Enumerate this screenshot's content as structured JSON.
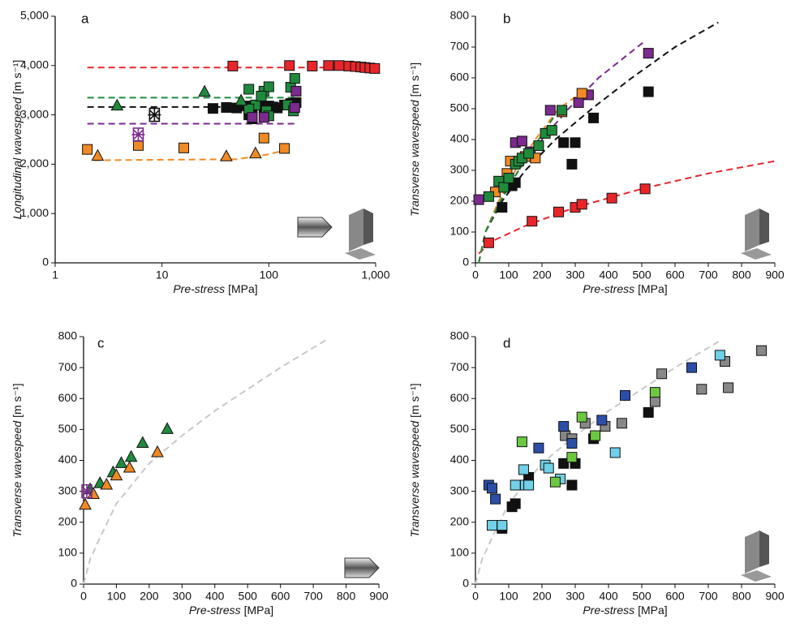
{
  "chart_data": [
    {
      "type": "scatter",
      "panel": "a",
      "xscale": "log",
      "xlabel": "Pre-stress",
      "xlabel_unit": "[MPa]",
      "ylabel": "Longitudinal wavespeed",
      "ylabel_unit": "[m s⁻¹]",
      "xlim": [
        1,
        1000
      ],
      "ylim": [
        0,
        5000
      ],
      "xticks": [
        1,
        10,
        100,
        {
          "value": 1000,
          "label": "1,000"
        }
      ],
      "yticks": [
        0,
        {
          "value": 1000,
          "label": "1,000"
        },
        {
          "value": 2000,
          "label": "2,000"
        },
        {
          "value": 3000,
          "label": "3,000"
        },
        {
          "value": 4000,
          "label": "4,000"
        },
        {
          "value": 5000,
          "label": "5,000"
        }
      ],
      "series": [
        {
          "marker": "dash",
          "color": "#e8262a",
          "x": [
            2,
            900
          ],
          "values": [
            3960,
            3960
          ]
        },
        {
          "marker": "dash",
          "color": "#1f8a3c",
          "x": [
            2,
            180
          ],
          "values": [
            3350,
            3350
          ]
        },
        {
          "marker": "dash",
          "color": "#111111",
          "x": [
            2,
            180
          ],
          "values": [
            3160,
            3160
          ]
        },
        {
          "marker": "dash",
          "color": "#7b2a8e",
          "x": [
            2,
            180
          ],
          "values": [
            2820,
            2820
          ]
        },
        {
          "marker": "dash",
          "color": "#f08a24",
          "x": [
            2.3,
            10,
            50,
            100,
            150
          ],
          "values": [
            2080,
            2090,
            2100,
            2200,
            2300
          ]
        },
        {
          "marker": "square",
          "color": "#e8262a",
          "x": [
            46,
            156,
            255,
            362,
            455,
            561,
            646,
            728,
            795,
            883,
            980
          ],
          "values": [
            3990,
            4000,
            3990,
            4000,
            4000,
            3990,
            3980,
            3970,
            3960,
            3950,
            3940
          ]
        },
        {
          "marker": "square",
          "color": "#111111",
          "x": [
            30,
            40,
            50,
            60,
            70,
            80,
            90,
            100,
            110,
            120,
            140,
            160,
            180,
            65,
            70
          ],
          "values": [
            3130,
            3150,
            3140,
            3180,
            3120,
            3200,
            3150,
            3180,
            3160,
            3140,
            3200,
            3230,
            3250,
            3000,
            2920
          ]
        },
        {
          "marker": "square",
          "color": "#1f8a3c",
          "x": [
            65,
            75,
            90,
            100,
            85,
            95,
            100,
            65,
            160,
            175,
            150,
            170
          ],
          "values": [
            3520,
            3200,
            3480,
            3570,
            3380,
            3080,
            2980,
            3120,
            3560,
            3740,
            3200,
            3080
          ]
        },
        {
          "marker": "triangle",
          "color": "#1f8a3c",
          "x": [
            3.8,
            25,
            55
          ],
          "values": [
            3180,
            3460,
            3280
          ]
        },
        {
          "marker": "square",
          "color": "#7b2a8e",
          "x": [
            70,
            90,
            175,
            180
          ],
          "values": [
            2950,
            2950,
            3150,
            3480
          ]
        },
        {
          "marker": "square",
          "color": "#f08a24",
          "x": [
            2,
            6,
            16,
            90,
            140
          ],
          "values": [
            2300,
            2380,
            2330,
            2530,
            2320
          ]
        },
        {
          "marker": "triangle",
          "color": "#f08a24",
          "x": [
            2.5,
            40,
            75
          ],
          "values": [
            2160,
            2150,
            2210
          ]
        },
        {
          "marker": "star",
          "color": "#7b2a8e",
          "x": [
            6
          ],
          "values": [
            2600
          ]
        },
        {
          "marker": "star",
          "color": "#111111",
          "x": [
            8.5
          ],
          "values": [
            3000
          ]
        }
      ]
    },
    {
      "type": "scatter",
      "panel": "b",
      "xscale": "linear",
      "xlabel": "Pre-stress",
      "xlabel_unit": "[MPa]",
      "ylabel": "Transverse wavespeed",
      "ylabel_unit": "[m s⁻¹]",
      "xlim": [
        0,
        900
      ],
      "ylim": [
        0,
        800
      ],
      "xticks": [
        0,
        100,
        200,
        300,
        400,
        500,
        600,
        700,
        800,
        900
      ],
      "yticks": [
        0,
        100,
        200,
        300,
        400,
        500,
        600,
        700,
        800
      ],
      "series": [
        {
          "marker": "dash",
          "color": "#e8262a",
          "x": [
            10,
            50,
            150,
            300,
            500,
            700,
            900
          ],
          "values": [
            30,
            70,
            120,
            180,
            240,
            290,
            330
          ]
        },
        {
          "marker": "dash",
          "color": "#111111",
          "x": [
            10,
            30,
            80,
            150,
            240,
            350,
            470,
            600,
            730
          ],
          "values": [
            0,
            100,
            200,
            300,
            400,
            500,
            600,
            700,
            780
          ]
        },
        {
          "marker": "dash",
          "color": "#7b2a8e",
          "x": [
            10,
            30,
            70,
            130,
            200,
            280,
            370,
            510
          ],
          "values": [
            0,
            100,
            200,
            300,
            400,
            500,
            600,
            720
          ]
        },
        {
          "marker": "dash",
          "color": "#f08a24",
          "x": [
            10,
            30,
            70,
            120,
            180,
            250,
            330
          ],
          "values": [
            0,
            100,
            200,
            300,
            400,
            500,
            560
          ]
        },
        {
          "marker": "dash",
          "color": "#1f8a3c",
          "x": [
            10,
            30,
            75,
            130,
            190,
            240
          ],
          "values": [
            0,
            100,
            200,
            300,
            400,
            480
          ]
        },
        {
          "marker": "square",
          "color": "#111111",
          "x": [
            80,
            110,
            120,
            265,
            290,
            300,
            355,
            520
          ],
          "values": [
            180,
            250,
            260,
            390,
            320,
            390,
            470,
            555
          ]
        },
        {
          "marker": "square",
          "color": "#e8262a",
          "x": [
            40,
            170,
            250,
            300,
            320,
            410,
            510
          ],
          "values": [
            65,
            135,
            165,
            180,
            190,
            210,
            240
          ]
        },
        {
          "marker": "square",
          "color": "#7b2a8e",
          "x": [
            10,
            120,
            140,
            165,
            225,
            310,
            340,
            520
          ],
          "values": [
            205,
            390,
            395,
            360,
            495,
            520,
            545,
            680
          ]
        },
        {
          "marker": "square",
          "color": "#f08a24",
          "x": [
            60,
            95,
            105,
            150,
            180,
            260,
            320
          ],
          "values": [
            230,
            290,
            330,
            345,
            340,
            490,
            550
          ]
        },
        {
          "marker": "square",
          "color": "#1f8a3c",
          "x": [
            40,
            70,
            85,
            100,
            120,
            130,
            140,
            160,
            190,
            210,
            230,
            260
          ],
          "values": [
            215,
            265,
            245,
            275,
            320,
            330,
            340,
            355,
            380,
            420,
            430,
            495
          ]
        }
      ]
    },
    {
      "type": "scatter",
      "panel": "c",
      "xscale": "linear",
      "xlabel": "Pre-stress",
      "xlabel_unit": "[MPa]",
      "ylabel": "Transverse wavespeed",
      "ylabel_unit": "[m s⁻¹]",
      "xlim": [
        0,
        900
      ],
      "ylim": [
        0,
        800
      ],
      "xticks": [
        0,
        100,
        200,
        300,
        400,
        500,
        600,
        700,
        800,
        900
      ],
      "yticks": [
        0,
        100,
        200,
        300,
        400,
        500,
        600,
        700,
        800
      ],
      "series": [
        {
          "marker": "dash",
          "color": "#c8c8c8",
          "x": [
            0,
            20,
            50,
            100,
            200,
            300,
            400,
            500,
            600,
            740
          ],
          "values": [
            0,
            80,
            150,
            260,
            390,
            480,
            560,
            630,
            700,
            790
          ]
        },
        {
          "marker": "triangle",
          "color": "#1f8a3c",
          "x": [
            20,
            50,
            90,
            115,
            145,
            180,
            255
          ],
          "values": [
            305,
            325,
            360,
            390,
            410,
            455,
            500
          ]
        },
        {
          "marker": "triangle",
          "color": "#f08a24",
          "x": [
            5,
            30,
            70,
            100,
            140,
            225
          ],
          "values": [
            255,
            290,
            320,
            350,
            375,
            425
          ]
        },
        {
          "marker": "star",
          "color": "#7b2a8e",
          "x": [
            10
          ],
          "values": [
            300
          ]
        }
      ]
    },
    {
      "type": "scatter",
      "panel": "d",
      "xscale": "linear",
      "xlabel": "Pre-stress",
      "xlabel_unit": "[MPa]",
      "ylabel": "Transverse wavespeed",
      "ylabel_unit": "[m s⁻¹]",
      "xlim": [
        0,
        900
      ],
      "ylim": [
        0,
        800
      ],
      "xticks": [
        0,
        100,
        200,
        300,
        400,
        500,
        600,
        700,
        800,
        900
      ],
      "yticks": [
        0,
        100,
        200,
        300,
        400,
        500,
        600,
        700,
        800
      ],
      "series": [
        {
          "marker": "dash",
          "color": "#c8c8c8",
          "x": [
            0,
            20,
            50,
            100,
            200,
            300,
            400,
            500,
            600,
            740
          ],
          "values": [
            0,
            80,
            150,
            260,
            390,
            480,
            560,
            630,
            700,
            790
          ]
        },
        {
          "marker": "square",
          "color": "#888888",
          "x": [
            270,
            290,
            330,
            390,
            440,
            540,
            560,
            680,
            750,
            760,
            860
          ],
          "values": [
            480,
            470,
            520,
            510,
            520,
            590,
            680,
            630,
            720,
            635,
            755
          ]
        },
        {
          "marker": "square",
          "color": "#111111",
          "x": [
            80,
            110,
            120,
            160,
            265,
            290,
            300,
            355,
            520
          ],
          "values": [
            180,
            250,
            260,
            345,
            390,
            320,
            390,
            470,
            555
          ]
        },
        {
          "marker": "square",
          "color": "#2b4ea8",
          "x": [
            40,
            50,
            60,
            190,
            265,
            290,
            380,
            450,
            650
          ],
          "values": [
            320,
            310,
            275,
            440,
            510,
            455,
            530,
            610,
            700
          ]
        },
        {
          "marker": "square",
          "color": "#6fd0e8",
          "x": [
            50,
            80,
            120,
            145,
            150,
            160,
            210,
            220,
            255,
            420,
            735
          ],
          "values": [
            190,
            190,
            320,
            370,
            320,
            320,
            385,
            375,
            340,
            425,
            740
          ]
        },
        {
          "marker": "square",
          "color": "#6cc840",
          "x": [
            140,
            240,
            290,
            320,
            360,
            540
          ],
          "values": [
            460,
            330,
            410,
            540,
            480,
            620
          ]
        }
      ]
    }
  ]
}
